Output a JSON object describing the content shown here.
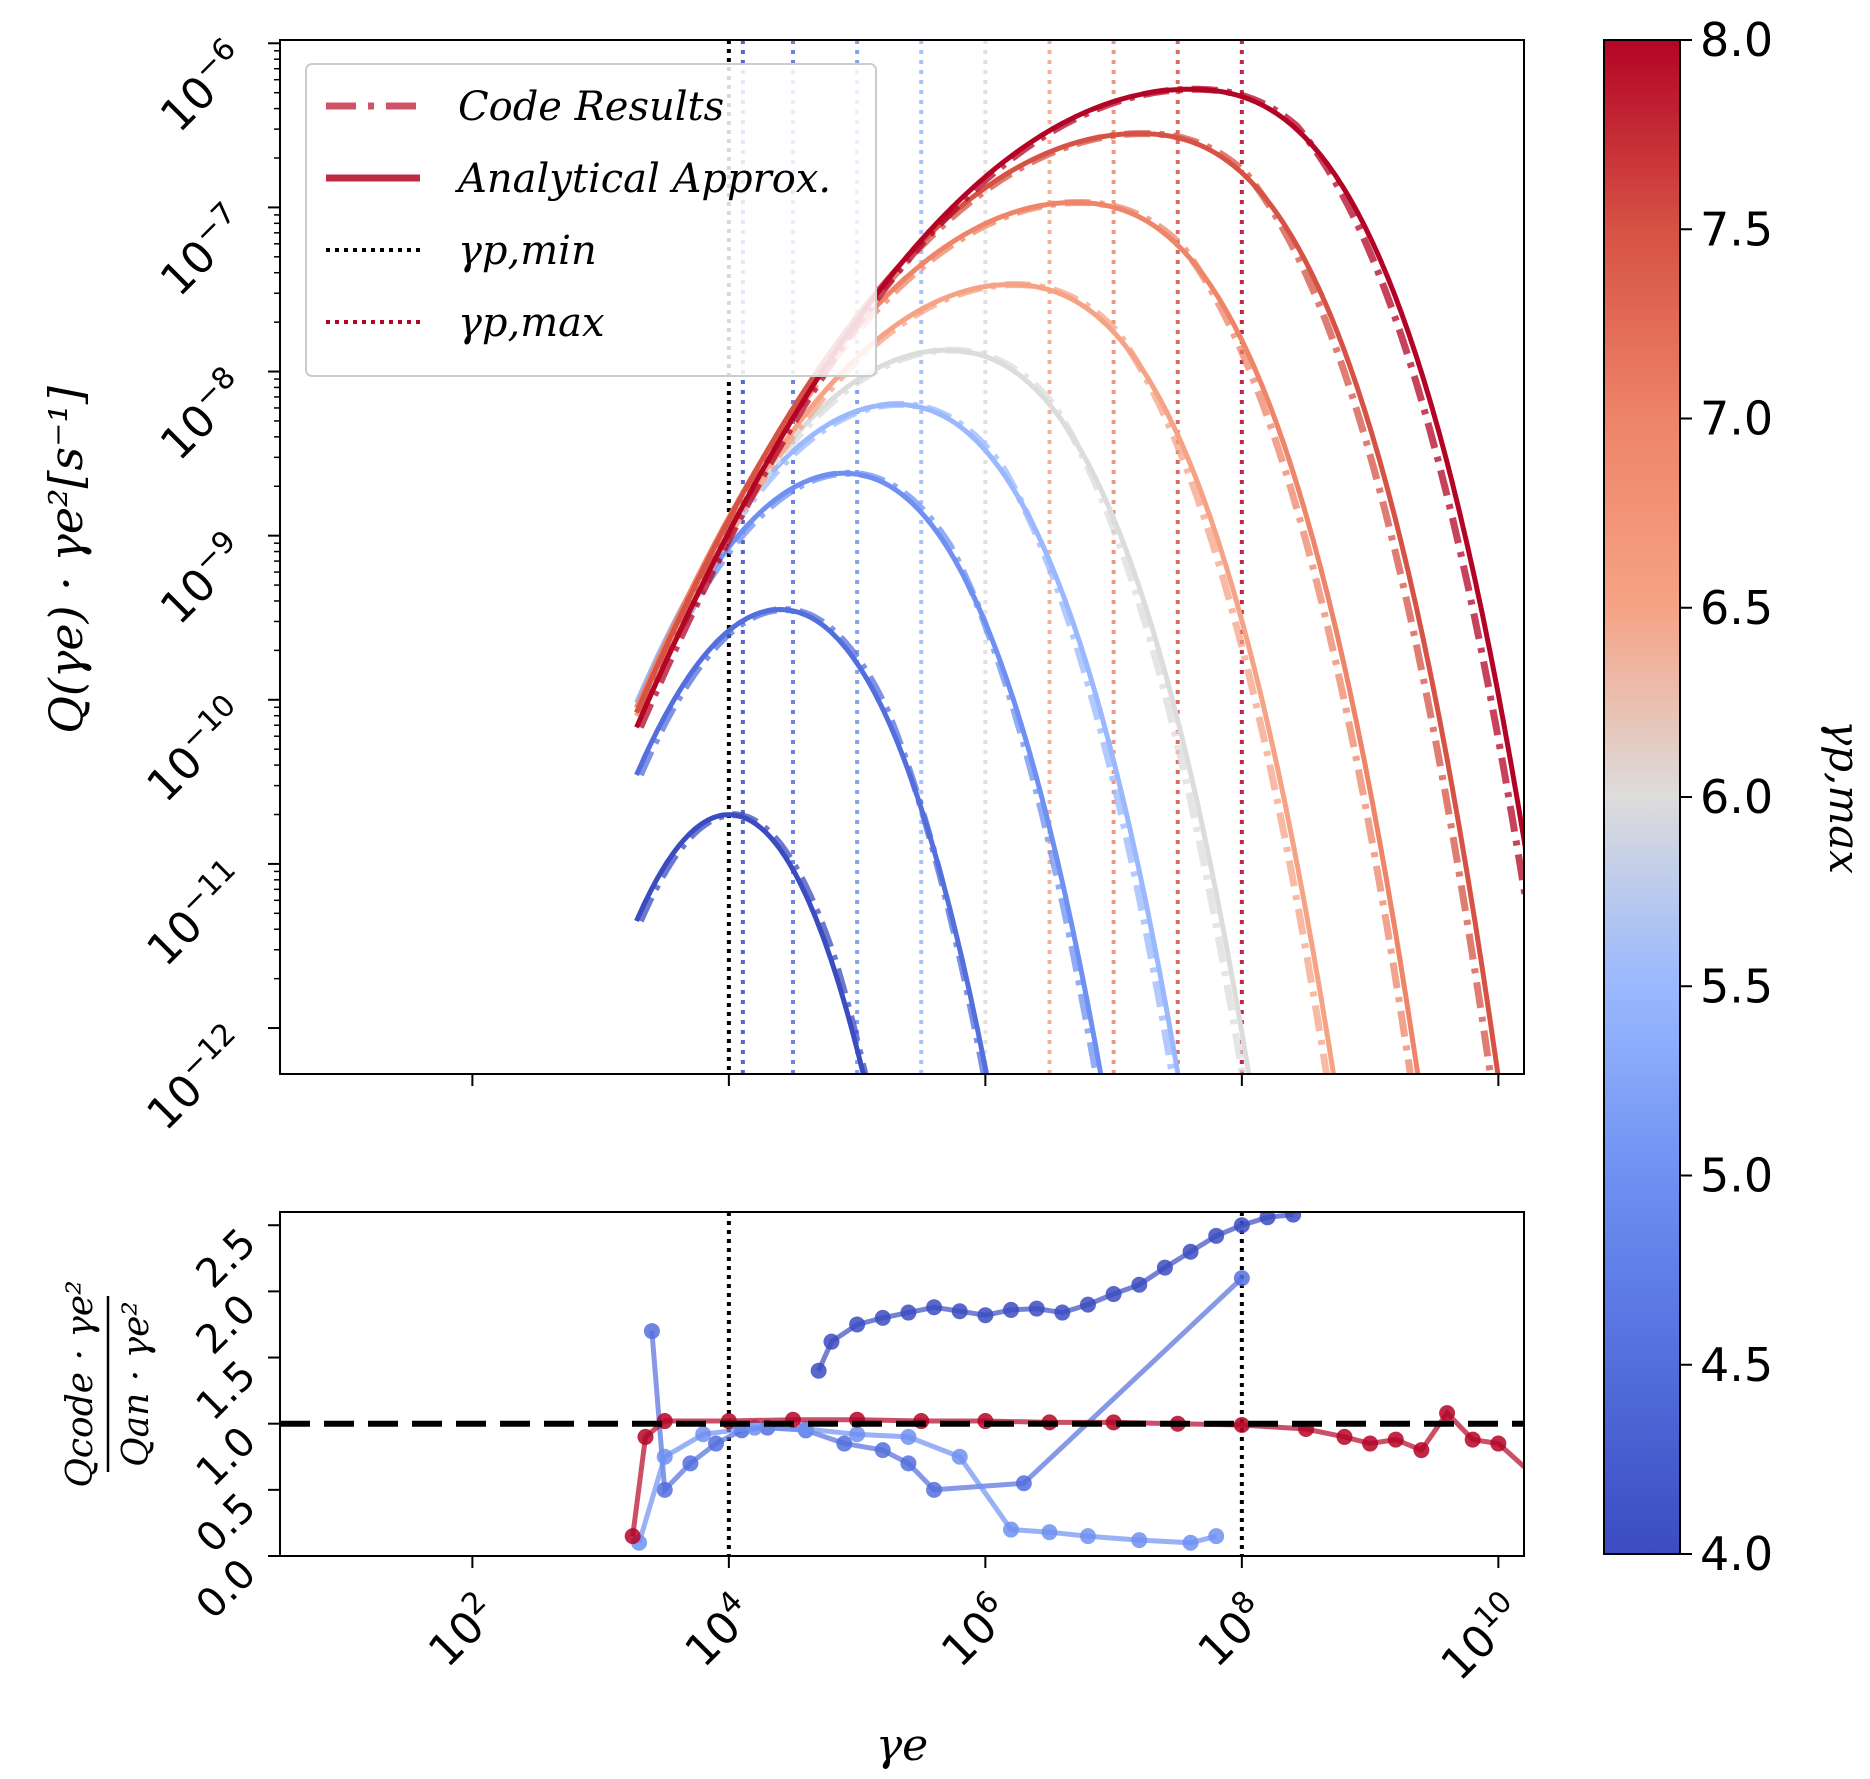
{
  "chart_data": [
    {
      "type": "line",
      "panel": "top",
      "ylabel": "Q(γe) · γe²[s⁻¹]",
      "xscale": "log",
      "yscale": "log",
      "xlim": [
        1.0,
        10000000000.0
      ],
      "ylim": [
        1e-12,
        1e-06
      ],
      "x_tick_labels": [
        "",
        "",
        "",
        "",
        ""
      ],
      "y_tick_labels": [
        {
          "base": "10",
          "exp": "−12"
        },
        {
          "base": "10",
          "exp": "−11"
        },
        {
          "base": "10",
          "exp": "−10"
        },
        {
          "base": "10",
          "exp": "−9"
        },
        {
          "base": "10",
          "exp": "−8"
        },
        {
          "base": "10",
          "exp": "−7"
        },
        {
          "base": "10",
          "exp": "−6"
        }
      ],
      "legend": {
        "placement": "upper-left",
        "entries": [
          {
            "label": "Code Results",
            "style": "dashdot",
            "color": "#d0536a"
          },
          {
            "label": "Analytical Approx.",
            "style": "solid",
            "color": "#c02b44"
          },
          {
            "label": "γp,min",
            "style": "dotted",
            "color": "#000000"
          },
          {
            "label": "γp,max",
            "style": "dotted",
            "color": "#b40426"
          }
        ]
      },
      "gamma_p_min_log10": 4.0,
      "series": [
        {
          "gamma_p_max_log10": 4.0,
          "peak_log10_gamma": 4.0,
          "peak_log10_Q": -10.7,
          "color": "#3b4cc0"
        },
        {
          "gamma_p_max_log10": 4.5,
          "peak_log10_gamma": 4.4,
          "peak_log10_Q": -9.45,
          "color": "#536edd"
        },
        {
          "gamma_p_max_log10": 5.0,
          "peak_log10_gamma": 4.9,
          "peak_log10_Q": -8.62,
          "color": "#6e90f2"
        },
        {
          "gamma_p_max_log10": 5.5,
          "peak_log10_gamma": 5.3,
          "peak_log10_Q": -8.2,
          "color": "#9ab8fe"
        },
        {
          "gamma_p_max_log10": 6.0,
          "peak_log10_gamma": 5.7,
          "peak_log10_Q": -7.87,
          "color": "#dddcdc"
        },
        {
          "gamma_p_max_log10": 6.5,
          "peak_log10_gamma": 6.2,
          "peak_log10_Q": -7.47,
          "color": "#f6a385"
        },
        {
          "gamma_p_max_log10": 7.0,
          "peak_log10_gamma": 6.7,
          "peak_log10_Q": -6.97,
          "color": "#ee8468"
        },
        {
          "gamma_p_max_log10": 7.5,
          "peak_log10_gamma": 7.2,
          "peak_log10_Q": -6.55,
          "color": "#d65244"
        },
        {
          "gamma_p_max_log10": 8.0,
          "peak_log10_gamma": 7.6,
          "peak_log10_Q": -6.28,
          "color": "#b40426"
        }
      ]
    },
    {
      "type": "line",
      "panel": "bottom",
      "ylabel": "Qcode · γe² / Qan · γe²",
      "xlabel": "γe",
      "xscale": "log",
      "xlim": [
        1.0,
        10000000000.0
      ],
      "ylim": [
        0.0,
        2.6
      ],
      "x_tick_labels": [
        {
          "base": "10",
          "exp": "2"
        },
        {
          "base": "10",
          "exp": "4"
        },
        {
          "base": "10",
          "exp": "6"
        },
        {
          "base": "10",
          "exp": "8"
        },
        {
          "base": "10",
          "exp": "10"
        }
      ],
      "y_tick_labels": [
        "0.0",
        "0.5",
        "1.0",
        "1.5",
        "2.0",
        "2.5"
      ],
      "reference_line": 1.0,
      "series": [
        {
          "gamma_p_max_log10": 4.0,
          "color": "#3b4cc0",
          "x_log10": [
            4.7,
            4.8,
            5.0,
            5.2,
            5.4,
            5.6,
            5.8,
            6.0,
            6.2,
            6.4,
            6.6,
            6.8,
            7.0,
            7.2,
            7.4,
            7.6,
            7.8,
            8.0,
            8.2,
            8.4
          ],
          "y": [
            1.4,
            1.62,
            1.75,
            1.8,
            1.84,
            1.88,
            1.85,
            1.82,
            1.86,
            1.87,
            1.84,
            1.9,
            1.98,
            2.05,
            2.18,
            2.3,
            2.42,
            2.5,
            2.56,
            2.58
          ]
        },
        {
          "gamma_p_max_log10": 4.5,
          "color": "#536edd",
          "x_log10": [
            3.4,
            3.5,
            3.7,
            3.9,
            4.1,
            4.3,
            4.6,
            4.9,
            5.2,
            5.4,
            5.6,
            6.3,
            8.0
          ],
          "y": [
            1.7,
            0.5,
            0.7,
            0.85,
            0.95,
            0.97,
            0.95,
            0.85,
            0.8,
            0.7,
            0.5,
            0.55,
            2.1
          ]
        },
        {
          "gamma_p_max_log10": 5.0,
          "color": "#6e90f2",
          "x_log10": [
            3.3,
            3.5,
            3.8,
            4.2,
            4.6,
            5.0,
            5.4,
            5.8,
            6.2,
            6.5,
            6.8,
            7.2,
            7.6,
            7.8
          ],
          "y": [
            0.1,
            0.75,
            0.92,
            0.97,
            0.96,
            0.92,
            0.9,
            0.75,
            0.2,
            0.18,
            0.15,
            0.12,
            0.1,
            0.15
          ]
        },
        {
          "gamma_p_max_log10": 8.0,
          "color": "#b40426",
          "x_log10": [
            3.25,
            3.35,
            3.5,
            4.0,
            4.5,
            5.0,
            5.5,
            6.0,
            6.5,
            7.0,
            7.5,
            8.0,
            8.5,
            8.8,
            9.0,
            9.2,
            9.4,
            9.6,
            9.8,
            10.0,
            10.4
          ],
          "y": [
            0.15,
            0.9,
            1.02,
            1.02,
            1.03,
            1.03,
            1.02,
            1.02,
            1.01,
            1.01,
            1.0,
            0.99,
            0.96,
            0.9,
            0.85,
            0.88,
            0.8,
            1.08,
            0.88,
            0.85,
            0.5
          ]
        }
      ]
    },
    {
      "type": "colorbar",
      "label": "γp,max",
      "range": [
        4.0,
        8.0
      ],
      "tick_labels": [
        "4.0",
        "4.5",
        "5.0",
        "5.5",
        "6.0",
        "6.5",
        "7.0",
        "7.5",
        "8.0"
      ],
      "colormap": [
        "#3b4cc0",
        "#536edd",
        "#6e90f2",
        "#9ab8fe",
        "#dddcdc",
        "#f6a385",
        "#ee8468",
        "#d65244",
        "#b40426"
      ]
    }
  ]
}
